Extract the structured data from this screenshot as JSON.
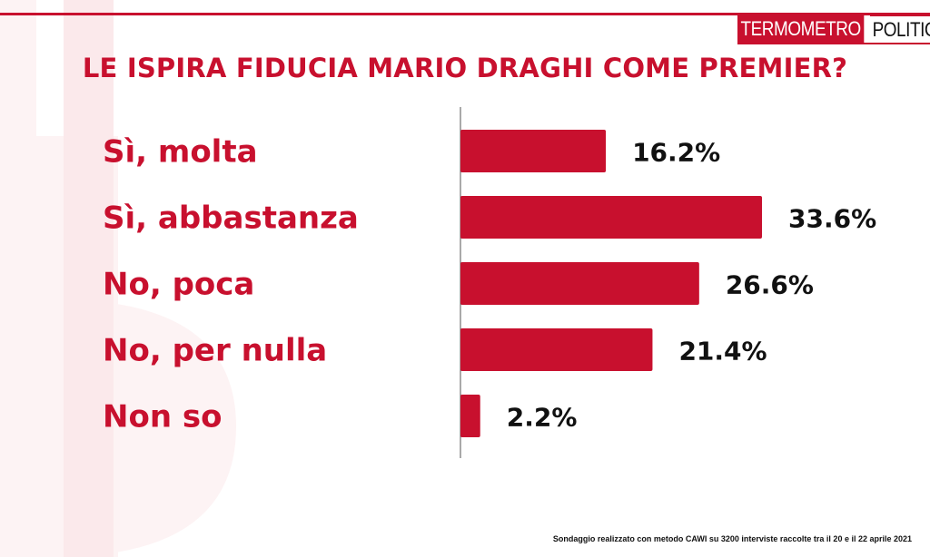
{
  "brand": {
    "logo_part1": "TERMOMETRO",
    "logo_part2": "POLITICO"
  },
  "footnote": "Sondaggio realizzato con metodo CAWI su 3200 interviste raccolte tra il 20 e il 22 aprile 2021",
  "colors": {
    "accent": "#c8102e",
    "value_text": "#111111"
  },
  "chart_data": {
    "type": "bar",
    "orientation": "horizontal",
    "title": "LE ISPIRA FIDUCIA MARIO DRAGHI COME PREMIER?",
    "categories": [
      "Sì, molta",
      "Sì, abbastanza",
      "No, poca",
      "No, per nulla",
      "Non so"
    ],
    "values": [
      16.2,
      33.6,
      26.6,
      21.4,
      2.2
    ],
    "value_labels": [
      "16.2%",
      "33.6%",
      "26.6%",
      "21.4%",
      "2.2%"
    ],
    "xlim": [
      0,
      33.6
    ],
    "grid": false,
    "legend": "none"
  }
}
